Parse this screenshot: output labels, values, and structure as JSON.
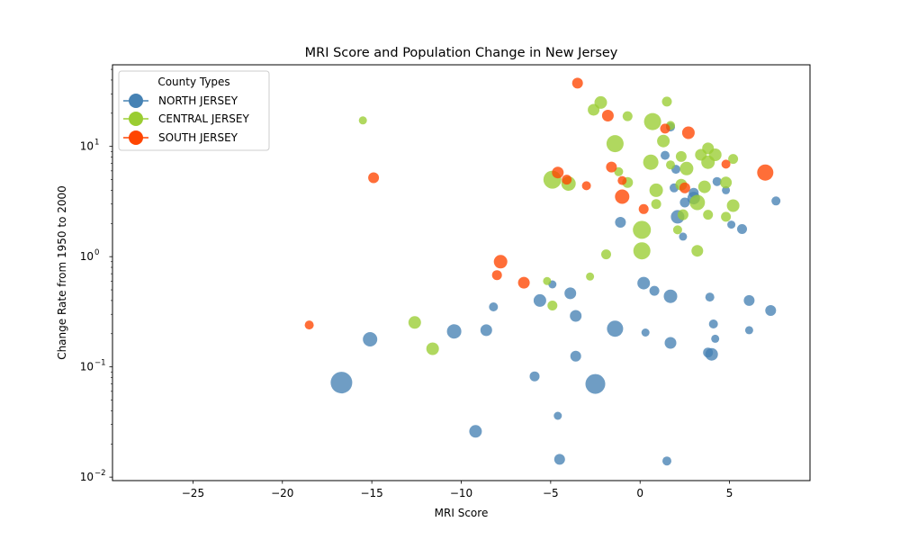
{
  "chart_data": {
    "type": "scatter",
    "title": "MRI Score and Population Change in New Jersey",
    "xlabel": "MRI Score",
    "ylabel": "Change Rate from 1950 to 2000",
    "xlim": [
      -29.5,
      9.5
    ],
    "ylim": [
      0.0093,
      55
    ],
    "yscale": "log",
    "x_ticks": [
      -25,
      -20,
      -15,
      -10,
      -5,
      0,
      5
    ],
    "x_tick_labels": [
      "−25",
      "−20",
      "−15",
      "−10",
      "−5",
      "0",
      "5"
    ],
    "y_ticks": [
      0.01,
      0.1,
      1,
      10
    ],
    "y_tick_labels": [
      "10",
      "10",
      "10",
      "10"
    ],
    "y_tick_exponents": [
      "−2",
      "−1",
      "0",
      "1"
    ],
    "legend": {
      "title": "County Types",
      "location": "upper-left",
      "entries": [
        "NORTH JERSEY",
        "CENTRAL JERSEY",
        "SOUTH JERSEY"
      ]
    },
    "series": [
      {
        "name": "NORTH JERSEY",
        "color": "#4682b4",
        "points": [
          {
            "x": -16.7,
            "y": 0.072,
            "s": 12
          },
          {
            "x": -15.1,
            "y": 0.178,
            "s": 8
          },
          {
            "x": -10.4,
            "y": 0.21,
            "s": 8
          },
          {
            "x": -9.2,
            "y": 0.026,
            "s": 7
          },
          {
            "x": -8.6,
            "y": 0.215,
            "s": 6.5
          },
          {
            "x": -8.2,
            "y": 0.35,
            "s": 5
          },
          {
            "x": -5.9,
            "y": 0.082,
            "s": 5.5
          },
          {
            "x": -5.6,
            "y": 0.4,
            "s": 7
          },
          {
            "x": -4.9,
            "y": 0.56,
            "s": 4.5
          },
          {
            "x": -4.6,
            "y": 0.036,
            "s": 4.5
          },
          {
            "x": -4.5,
            "y": 0.0145,
            "s": 6
          },
          {
            "x": -3.9,
            "y": 0.465,
            "s": 6.5
          },
          {
            "x": -3.6,
            "y": 0.29,
            "s": 6.5
          },
          {
            "x": -3.6,
            "y": 0.125,
            "s": 6
          },
          {
            "x": -2.5,
            "y": 0.07,
            "s": 11
          },
          {
            "x": -1.4,
            "y": 0.222,
            "s": 9
          },
          {
            "x": -1.1,
            "y": 2.05,
            "s": 6
          },
          {
            "x": 0.2,
            "y": 0.575,
            "s": 7
          },
          {
            "x": 0.3,
            "y": 0.205,
            "s": 4.5
          },
          {
            "x": 0.8,
            "y": 0.49,
            "s": 5.5
          },
          {
            "x": 1.4,
            "y": 8.3,
            "s": 5
          },
          {
            "x": 1.5,
            "y": 0.014,
            "s": 5
          },
          {
            "x": 1.7,
            "y": 15.0,
            "s": 5
          },
          {
            "x": 1.7,
            "y": 0.437,
            "s": 7.5
          },
          {
            "x": 1.7,
            "y": 0.165,
            "s": 6.5
          },
          {
            "x": 1.9,
            "y": 4.2,
            "s": 5
          },
          {
            "x": 2.0,
            "y": 6.2,
            "s": 5
          },
          {
            "x": 2.1,
            "y": 2.3,
            "s": 7.5
          },
          {
            "x": 2.4,
            "y": 1.52,
            "s": 4.5
          },
          {
            "x": 2.5,
            "y": 3.1,
            "s": 5.5
          },
          {
            "x": 3.0,
            "y": 3.8,
            "s": 5.5
          },
          {
            "x": 3.0,
            "y": 3.4,
            "s": 7
          },
          {
            "x": 3.8,
            "y": 0.135,
            "s": 5.5
          },
          {
            "x": 3.9,
            "y": 0.43,
            "s": 5
          },
          {
            "x": 4.0,
            "y": 0.13,
            "s": 7
          },
          {
            "x": 4.1,
            "y": 0.245,
            "s": 5
          },
          {
            "x": 4.2,
            "y": 0.18,
            "s": 4.5
          },
          {
            "x": 4.3,
            "y": 4.8,
            "s": 5
          },
          {
            "x": 4.8,
            "y": 4.0,
            "s": 4.5
          },
          {
            "x": 5.1,
            "y": 1.95,
            "s": 4.5
          },
          {
            "x": 5.7,
            "y": 1.78,
            "s": 5.5
          },
          {
            "x": 6.1,
            "y": 0.4,
            "s": 6
          },
          {
            "x": 6.1,
            "y": 0.215,
            "s": 4.5
          },
          {
            "x": 7.3,
            "y": 0.325,
            "s": 6
          },
          {
            "x": 7.6,
            "y": 3.2,
            "s": 5
          }
        ]
      },
      {
        "name": "CENTRAL JERSEY",
        "color": "#9acd32",
        "points": [
          {
            "x": -15.5,
            "y": 17.2,
            "s": 4.5
          },
          {
            "x": -12.6,
            "y": 0.253,
            "s": 7
          },
          {
            "x": -11.6,
            "y": 0.146,
            "s": 7
          },
          {
            "x": -5.2,
            "y": 0.6,
            "s": 4.5
          },
          {
            "x": -4.9,
            "y": 0.36,
            "s": 5.5
          },
          {
            "x": -4.9,
            "y": 5.0,
            "s": 10
          },
          {
            "x": -4.0,
            "y": 4.6,
            "s": 8
          },
          {
            "x": -2.8,
            "y": 0.66,
            "s": 4.5
          },
          {
            "x": -2.6,
            "y": 21.5,
            "s": 6.5
          },
          {
            "x": -2.2,
            "y": 25.0,
            "s": 7
          },
          {
            "x": -1.9,
            "y": 1.05,
            "s": 5.5
          },
          {
            "x": -1.4,
            "y": 10.6,
            "s": 9.5
          },
          {
            "x": -1.2,
            "y": 5.9,
            "s": 5
          },
          {
            "x": -0.7,
            "y": 18.8,
            "s": 5.5
          },
          {
            "x": -0.7,
            "y": 4.7,
            "s": 6
          },
          {
            "x": 0.1,
            "y": 1.75,
            "s": 10
          },
          {
            "x": 0.1,
            "y": 1.13,
            "s": 9.5
          },
          {
            "x": 0.6,
            "y": 7.2,
            "s": 8.5
          },
          {
            "x": 0.7,
            "y": 16.8,
            "s": 9.5
          },
          {
            "x": 0.9,
            "y": 4.0,
            "s": 7.5
          },
          {
            "x": 0.9,
            "y": 3.0,
            "s": 5.5
          },
          {
            "x": 1.3,
            "y": 11.2,
            "s": 7
          },
          {
            "x": 1.5,
            "y": 25.5,
            "s": 5.5
          },
          {
            "x": 1.7,
            "y": 15.5,
            "s": 5
          },
          {
            "x": 1.7,
            "y": 6.8,
            "s": 5
          },
          {
            "x": 2.1,
            "y": 1.75,
            "s": 5
          },
          {
            "x": 2.3,
            "y": 4.5,
            "s": 6.5
          },
          {
            "x": 2.3,
            "y": 8.1,
            "s": 6
          },
          {
            "x": 2.4,
            "y": 2.4,
            "s": 6
          },
          {
            "x": 2.6,
            "y": 6.3,
            "s": 7.5
          },
          {
            "x": 3.2,
            "y": 1.13,
            "s": 6.5
          },
          {
            "x": 3.2,
            "y": 3.1,
            "s": 8.5
          },
          {
            "x": 3.4,
            "y": 8.4,
            "s": 6.5
          },
          {
            "x": 3.6,
            "y": 4.3,
            "s": 7
          },
          {
            "x": 3.8,
            "y": 9.6,
            "s": 6.5
          },
          {
            "x": 3.8,
            "y": 7.2,
            "s": 7.5
          },
          {
            "x": 3.8,
            "y": 2.4,
            "s": 5.5
          },
          {
            "x": 4.2,
            "y": 8.4,
            "s": 7
          },
          {
            "x": 4.8,
            "y": 2.3,
            "s": 5.5
          },
          {
            "x": 4.8,
            "y": 4.7,
            "s": 6.5
          },
          {
            "x": 5.2,
            "y": 7.7,
            "s": 5.5
          },
          {
            "x": 5.2,
            "y": 2.9,
            "s": 7
          }
        ]
      },
      {
        "name": "SOUTH JERSEY",
        "color": "#ff4500",
        "points": [
          {
            "x": -18.5,
            "y": 0.24,
            "s": 5
          },
          {
            "x": -14.9,
            "y": 5.2,
            "s": 6
          },
          {
            "x": -8.0,
            "y": 0.68,
            "s": 5.5
          },
          {
            "x": -7.8,
            "y": 0.9,
            "s": 7.5
          },
          {
            "x": -6.5,
            "y": 0.58,
            "s": 6.5
          },
          {
            "x": -4.6,
            "y": 5.8,
            "s": 6.5
          },
          {
            "x": -4.1,
            "y": 5.0,
            "s": 5.5
          },
          {
            "x": -3.5,
            "y": 37.5,
            "s": 6
          },
          {
            "x": -3.0,
            "y": 4.4,
            "s": 5
          },
          {
            "x": -1.8,
            "y": 19.0,
            "s": 6.5
          },
          {
            "x": -1.6,
            "y": 6.5,
            "s": 6
          },
          {
            "x": -1.0,
            "y": 4.9,
            "s": 5
          },
          {
            "x": -1.0,
            "y": 3.5,
            "s": 8
          },
          {
            "x": 0.2,
            "y": 2.7,
            "s": 5.5
          },
          {
            "x": 1.4,
            "y": 14.5,
            "s": 5.5
          },
          {
            "x": 2.5,
            "y": 4.2,
            "s": 6
          },
          {
            "x": 2.7,
            "y": 13.3,
            "s": 7
          },
          {
            "x": 4.8,
            "y": 6.9,
            "s": 5
          },
          {
            "x": 7.0,
            "y": 5.8,
            "s": 9
          }
        ]
      }
    ]
  }
}
